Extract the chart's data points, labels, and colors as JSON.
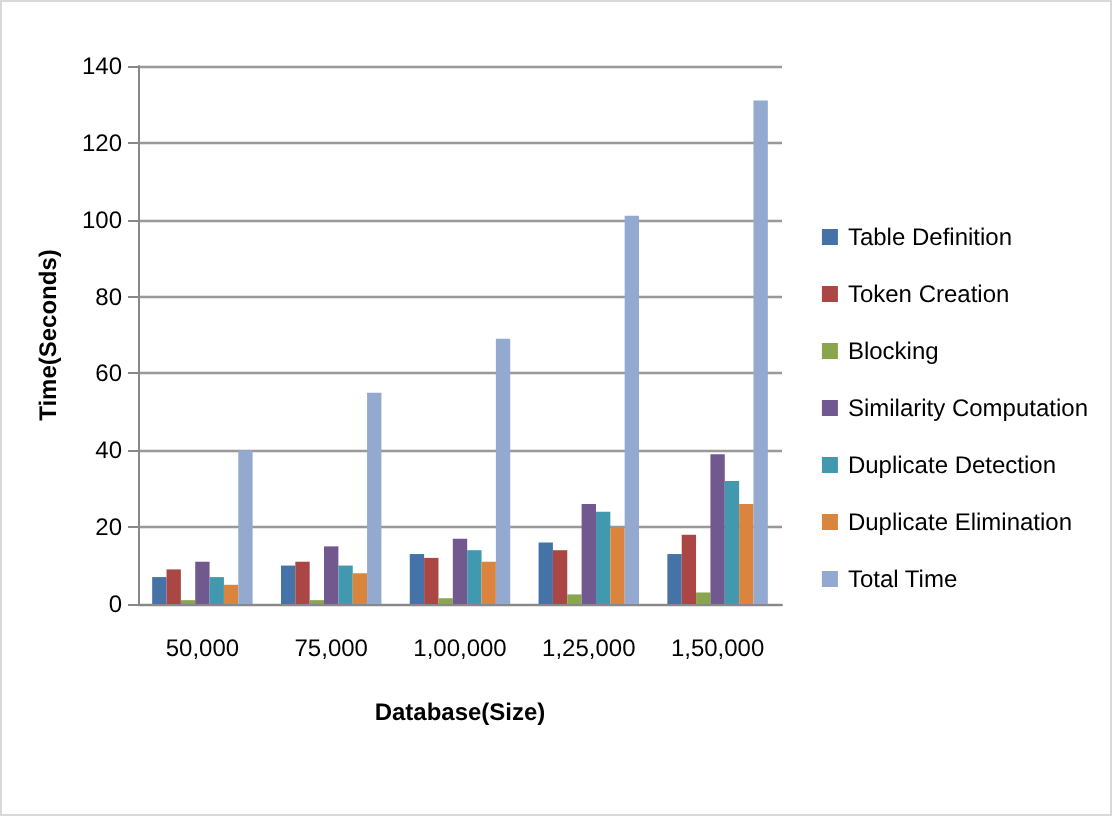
{
  "chart_data": {
    "type": "bar",
    "xlabel": "Database(Size)",
    "ylabel": "Time(Seconds)",
    "categories": [
      "50,000",
      "75,000",
      "1,00,000",
      "1,25,000",
      "1,50,000"
    ],
    "series": [
      {
        "name": "Table Definition",
        "color": "#4572a7",
        "values": [
          7,
          10,
          13,
          16,
          13
        ]
      },
      {
        "name": "Token Creation",
        "color": "#aa4643",
        "values": [
          9,
          11,
          12,
          14,
          18
        ]
      },
      {
        "name": "Blocking",
        "color": "#89a54e",
        "values": [
          1,
          1,
          1.5,
          2.5,
          3
        ]
      },
      {
        "name": "Similarity Computation",
        "color": "#71588f",
        "values": [
          11,
          15,
          17,
          26,
          39
        ]
      },
      {
        "name": "Duplicate Detection",
        "color": "#4198af",
        "values": [
          7,
          10,
          14,
          24,
          32
        ]
      },
      {
        "name": "Duplicate Elimination",
        "color": "#db843d",
        "values": [
          5,
          8,
          11,
          20,
          26
        ]
      },
      {
        "name": "Total Time",
        "color": "#93a9cf",
        "values": [
          40,
          55,
          69,
          101,
          131
        ]
      }
    ],
    "ylim": [
      0,
      140
    ],
    "yticks": [
      0,
      20,
      40,
      60,
      80,
      100,
      120,
      140
    ],
    "grid": "y",
    "legend": "right"
  }
}
